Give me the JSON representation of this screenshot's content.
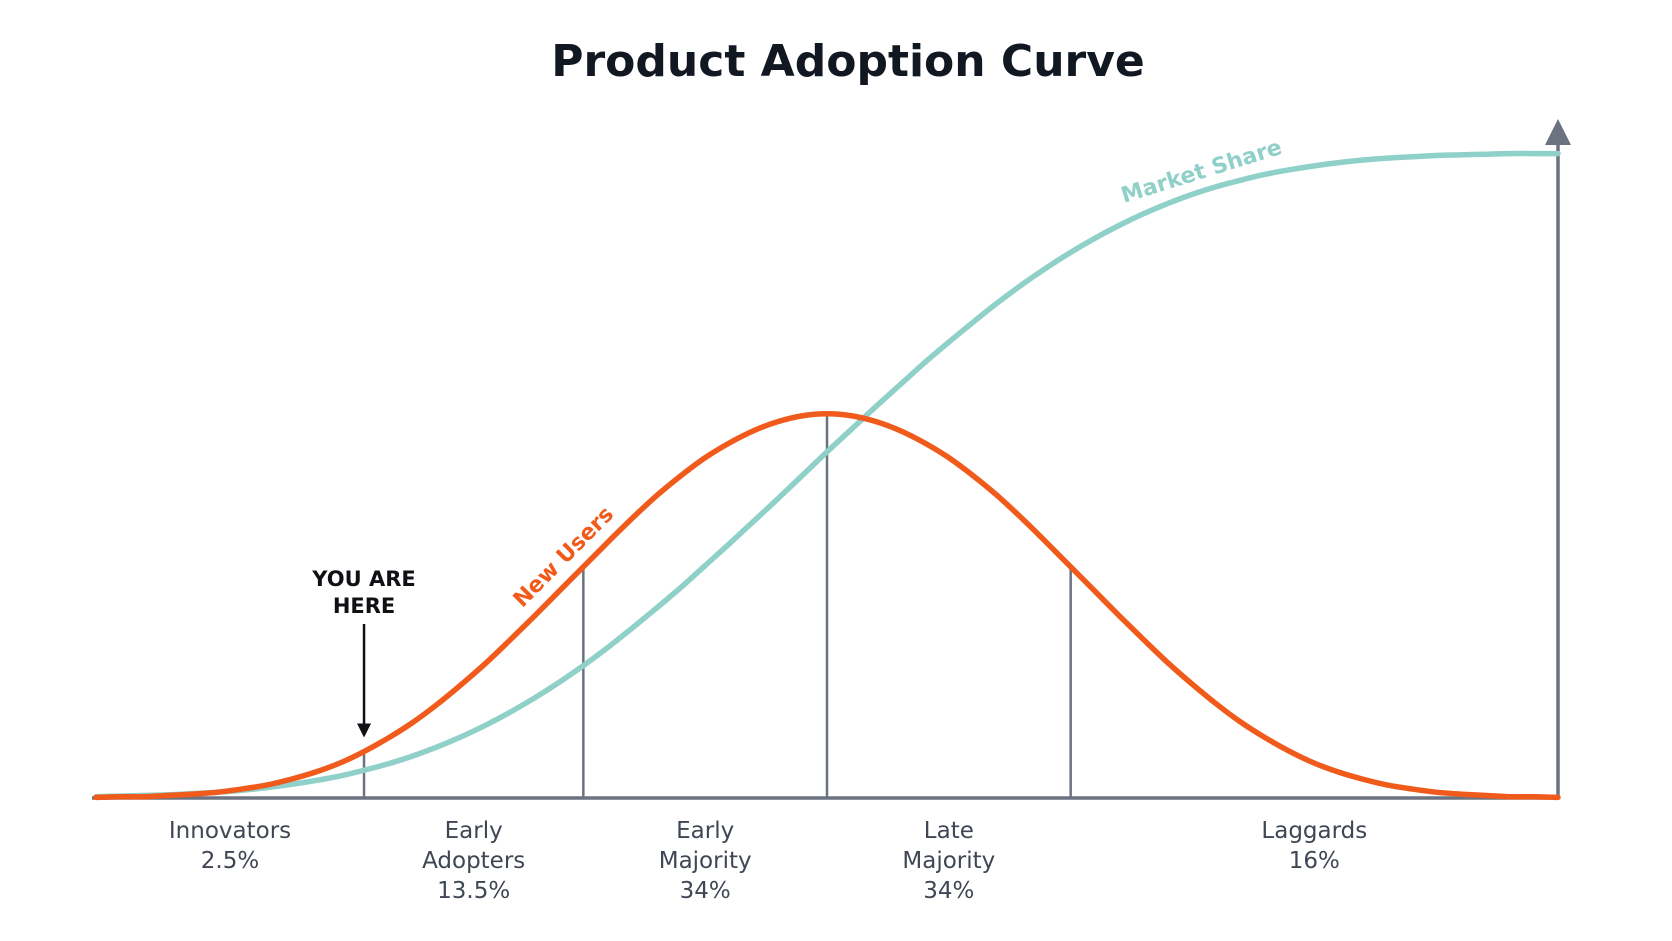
{
  "chart_data": {
    "type": "line",
    "title": "Product Adoption Curve",
    "x": [
      0,
      1,
      2,
      3,
      4,
      5,
      6,
      7,
      8,
      9,
      10,
      11,
      12,
      13,
      14,
      15,
      16,
      17,
      18,
      19,
      20,
      21,
      22,
      23,
      24,
      25,
      26,
      27,
      28,
      29,
      30,
      31,
      32,
      33,
      34,
      35,
      36,
      37,
      38,
      39,
      40,
      41,
      42,
      43,
      44,
      45,
      46,
      47,
      48,
      49,
      50,
      51,
      52,
      53,
      54,
      55,
      56,
      57,
      58,
      59,
      60
    ],
    "series": [
      {
        "name": "New Users",
        "color": "#f05a1a",
        "values": [
          0.1,
          0.2,
          0.2,
          0.4,
          0.6,
          0.9,
          1.4,
          2.0,
          2.9,
          4.0,
          5.4,
          7.2,
          9.3,
          11.7,
          14.5,
          17.6,
          20.9,
          24.5,
          28.2,
          32.0,
          35.8,
          39.6,
          43.3,
          46.8,
          49.9,
          52.7,
          55.0,
          56.9,
          58.3,
          59.2,
          59.5,
          59.2,
          58.3,
          56.9,
          55.0,
          52.7,
          49.9,
          46.8,
          43.3,
          39.6,
          35.8,
          32.0,
          28.2,
          24.5,
          20.9,
          17.6,
          14.5,
          11.7,
          9.3,
          7.2,
          5.4,
          4.0,
          2.9,
          2.0,
          1.4,
          0.9,
          0.6,
          0.4,
          0.2,
          0.2,
          0.1
        ]
      },
      {
        "name": "Market Share",
        "color": "#8fd0c8",
        "values": [
          0.2,
          0.3,
          0.4,
          0.5,
          0.7,
          0.9,
          1.2,
          1.6,
          2.1,
          2.7,
          3.4,
          4.3,
          5.3,
          6.5,
          7.9,
          9.5,
          11.3,
          13.3,
          15.5,
          17.9,
          20.5,
          23.3,
          26.3,
          29.4,
          32.6,
          36.0,
          39.4,
          42.9,
          46.4,
          50.0,
          53.6,
          57.1,
          60.6,
          64.0,
          67.4,
          70.6,
          73.7,
          76.7,
          79.5,
          82.1,
          84.5,
          86.7,
          88.7,
          90.5,
          92.1,
          93.5,
          94.7,
          95.7,
          96.6,
          97.3,
          97.9,
          98.4,
          98.8,
          99.1,
          99.3,
          99.5,
          99.6,
          99.7,
          99.8,
          99.8,
          99.8
        ]
      }
    ],
    "ylim": [
      0,
      105
    ],
    "xlim": [
      0,
      60
    ],
    "grid": false,
    "boundaries": [
      11,
      20,
      30,
      40
    ],
    "segments": [
      {
        "lines": [
          "Innovators",
          "2.5%"
        ],
        "from": 0,
        "to": 11
      },
      {
        "lines": [
          "Early",
          "Adopters",
          "13.5%"
        ],
        "from": 11,
        "to": 20
      },
      {
        "lines": [
          "Early",
          "Majority",
          "34%"
        ],
        "from": 20,
        "to": 30
      },
      {
        "lines": [
          "Late",
          "Majority",
          "34%"
        ],
        "from": 30,
        "to": 40
      },
      {
        "lines": [
          "Laggards",
          "16%"
        ],
        "from": 40,
        "to": 60
      }
    ],
    "annotation": {
      "lines": [
        "YOU ARE",
        "HERE"
      ],
      "x": 11
    },
    "axis_color": "#6b7280",
    "text_color": "#3f4654"
  }
}
